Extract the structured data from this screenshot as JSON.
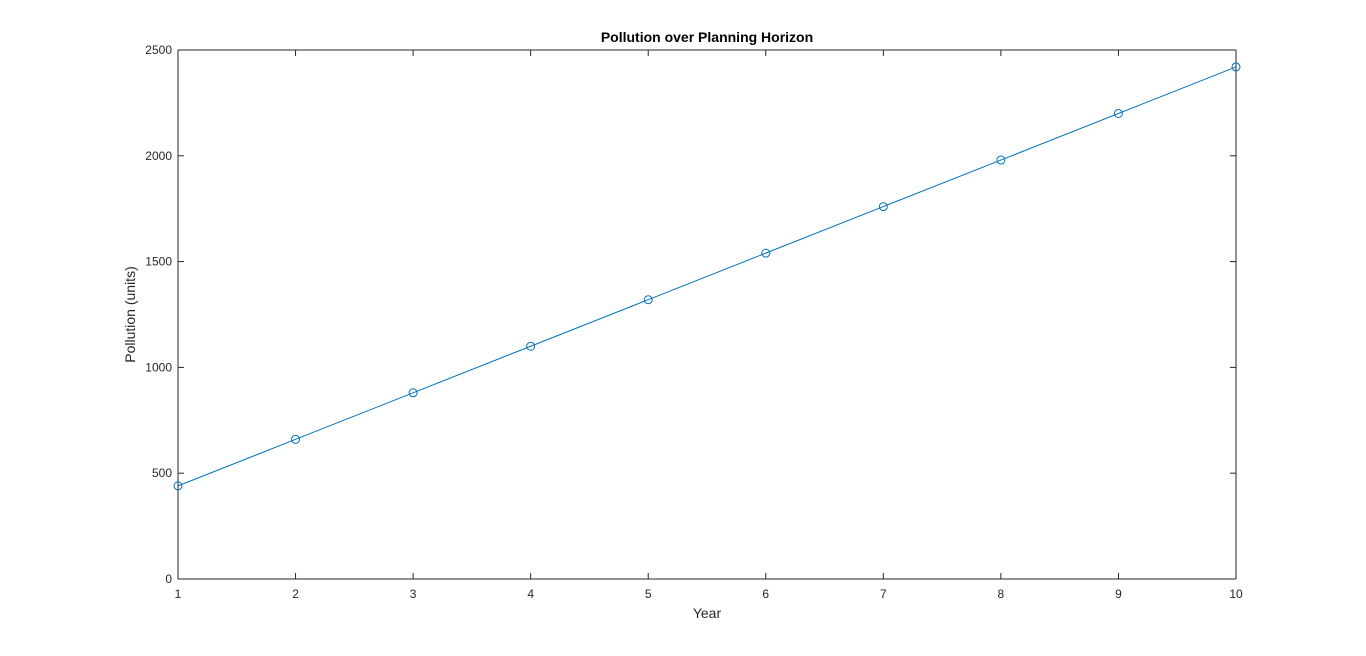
{
  "chart_data": {
    "type": "line",
    "title": "Pollution over Planning Horizon",
    "xlabel": "Year",
    "ylabel": "Pollution (units)",
    "x": [
      1,
      2,
      3,
      4,
      5,
      6,
      7,
      8,
      9,
      10
    ],
    "series": [
      {
        "values": [
          440,
          660,
          880,
          1100,
          1320,
          1540,
          1760,
          1980,
          2200,
          2420
        ],
        "marker": "circle",
        "color": "#0072BD"
      }
    ],
    "xlim": [
      1,
      10
    ],
    "ylim": [
      0,
      2500
    ],
    "xticks": [
      "1",
      "2",
      "3",
      "4",
      "5",
      "6",
      "7",
      "8",
      "9",
      "10"
    ],
    "yticks": [
      "0",
      "500",
      "1000",
      "1500",
      "2000",
      "2500"
    ],
    "grid": false,
    "box": true
  }
}
